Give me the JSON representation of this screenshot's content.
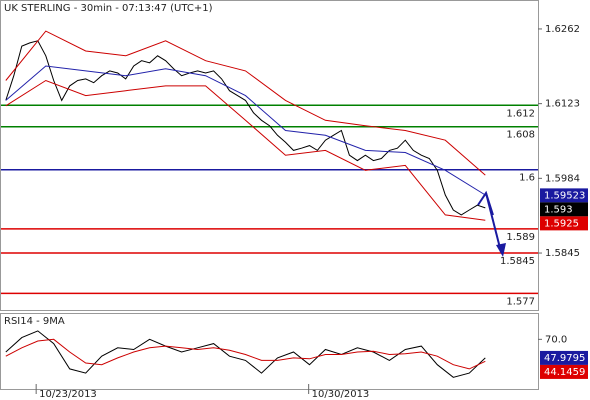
{
  "chart_data": [
    {
      "type": "line",
      "title": "UK STERLING - 30min - 07:13:47 (UTC+1)",
      "xlim": [
        -0.6,
        66.6
      ],
      "ylim": [
        1.5739,
        1.6314
      ],
      "yticks": [
        1.6262,
        1.6123,
        1.5984,
        1.5845
      ],
      "xticks": [
        {
          "value": 3.8,
          "label": "10/23/2013"
        },
        {
          "value": 37.9,
          "label": "10/30/2013"
        }
      ],
      "x": [
        0,
        1,
        2,
        3,
        4,
        5,
        6,
        7,
        8,
        9,
        10,
        11,
        12,
        13,
        14,
        15,
        16,
        17,
        18,
        19,
        20,
        21,
        22,
        23,
        24,
        25,
        26,
        27,
        28,
        29,
        30,
        31,
        32,
        33,
        34,
        35,
        36,
        37,
        38,
        39,
        40,
        41,
        42,
        43,
        44,
        45,
        46,
        47,
        48,
        49,
        50,
        51,
        52,
        53,
        54,
        55,
        56,
        57,
        58,
        59,
        60
      ],
      "series": [
        {
          "color": "#000000",
          "values": [
            1.6129,
            1.6175,
            1.623,
            1.6236,
            1.624,
            1.6212,
            1.6166,
            1.6129,
            1.6156,
            1.6166,
            1.6169,
            1.6162,
            1.6175,
            1.6184,
            1.618,
            1.6169,
            1.6193,
            1.6203,
            1.6199,
            1.6212,
            1.6203,
            1.6188,
            1.6175,
            1.618,
            1.6184,
            1.618,
            1.6184,
            1.6169,
            1.6147,
            1.6138,
            1.6129,
            1.6106,
            1.6092,
            1.6082,
            1.6064,
            1.6051,
            1.6036,
            1.604,
            1.6045,
            1.6036,
            1.6055,
            1.6064,
            1.6073,
            1.6027,
            1.6017,
            1.6027,
            1.6017,
            1.6021,
            1.6036,
            1.604,
            1.6055,
            1.6036,
            1.6027,
            1.6021,
            1.5999,
            1.5953,
            1.5925,
            1.5916,
            1.5925,
            1.5934,
            1.5929
          ]
        },
        {
          "color": "#2222aa",
          "x": [
            0,
            5,
            10,
            15,
            20,
            25,
            30,
            35,
            40,
            45,
            50,
            55,
            60
          ],
          "values": [
            1.6129,
            1.6193,
            1.6184,
            1.6175,
            1.6188,
            1.6175,
            1.6138,
            1.6073,
            1.6064,
            1.6036,
            1.6032,
            1.5999,
            1.5953
          ]
        },
        {
          "color": "#cc0000",
          "x": [
            0,
            5,
            10,
            15,
            20,
            25,
            30,
            35,
            40,
            45,
            50,
            55,
            60
          ],
          "values": [
            1.6166,
            1.6258,
            1.6221,
            1.6212,
            1.624,
            1.6203,
            1.6184,
            1.6129,
            1.6092,
            1.6082,
            1.6073,
            1.6055,
            1.599
          ]
        },
        {
          "color": "#cc0000",
          "x": [
            0,
            5,
            10,
            15,
            20,
            25,
            30,
            35,
            40,
            45,
            50,
            55,
            60
          ],
          "values": [
            1.6119,
            1.6166,
            1.6138,
            1.6147,
            1.6156,
            1.6156,
            1.6092,
            1.6027,
            1.6036,
            1.5999,
            1.6008,
            1.5916,
            1.5906
          ]
        }
      ],
      "levels": [
        {
          "value": 1.612,
          "color": "#008000"
        },
        {
          "value": 1.608,
          "color": "#008000"
        },
        {
          "value": 1.6,
          "color": "#1a1aa0"
        },
        {
          "value": 1.589,
          "color": "#dd0000"
        },
        {
          "value": 1.5845,
          "color": "#dd0000"
        },
        {
          "value": 1.577,
          "color": "#dd0000"
        }
      ],
      "price_tags": [
        {
          "value": 1.59523,
          "color": "#1a1aa0"
        },
        {
          "value": 1.593,
          "color": "#000000"
        },
        {
          "value": 1.5925,
          "color": "#dd0000"
        }
      ]
    },
    {
      "type": "line",
      "title": "RSI14 - 9MA",
      "xlim": [
        -0.6,
        66.6
      ],
      "ylim": [
        10,
        100
      ],
      "yticks": [
        {
          "value": 70,
          "label": "70.0"
        }
      ],
      "x": [
        0,
        2,
        4,
        6,
        8,
        10,
        12,
        14,
        16,
        18,
        20,
        22,
        24,
        26,
        28,
        30,
        32,
        34,
        36,
        38,
        40,
        42,
        44,
        46,
        48,
        50,
        52,
        54,
        56,
        58,
        60
      ],
      "series": [
        {
          "color": "#000000",
          "values": [
            55,
            72,
            80,
            65,
            35,
            30,
            50,
            60,
            58,
            70,
            62,
            55,
            60,
            65,
            50,
            45,
            30,
            48,
            55,
            40,
            58,
            52,
            60,
            55,
            45,
            58,
            62,
            40,
            25,
            30,
            48
          ]
        },
        {
          "color": "#cc0000",
          "values": [
            50,
            60,
            68,
            70,
            55,
            42,
            40,
            48,
            55,
            60,
            62,
            60,
            58,
            60,
            57,
            52,
            45,
            45,
            48,
            47,
            52,
            52,
            55,
            56,
            52,
            53,
            55,
            50,
            40,
            35,
            44
          ]
        }
      ],
      "price_tags": [
        {
          "value": 47.9795,
          "color": "#1a1aa0"
        },
        {
          "value": 44.1459,
          "color": "#dd0000"
        }
      ]
    }
  ]
}
